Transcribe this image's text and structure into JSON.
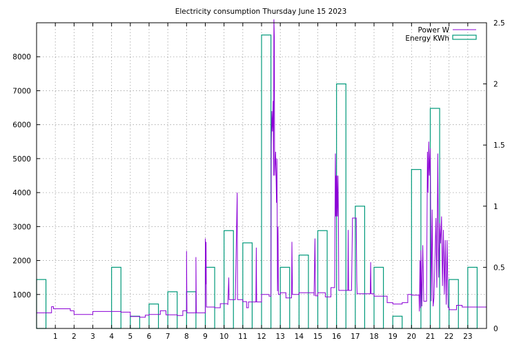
{
  "chart_data": {
    "type": "bar",
    "title": "Electricity consumption Thursday June 15 2023",
    "xlabel": "",
    "ylabel": "",
    "grid": true,
    "legend_position": "top-right",
    "x_ticks": [
      "1",
      "2",
      "3",
      "4",
      "5",
      "6",
      "7",
      "8",
      "9",
      "10",
      "11",
      "12",
      "13",
      "14",
      "15",
      "16",
      "17",
      "18",
      "19",
      "20",
      "21",
      "22",
      "23"
    ],
    "y_left_ticks": [
      "1000",
      "2000",
      "3000",
      "4000",
      "5000",
      "6000",
      "7000",
      "8000"
    ],
    "y_right_ticks": [
      "0",
      "0.5",
      "1",
      "1.5",
      "2",
      "2.5"
    ],
    "xlim": [
      0,
      24
    ],
    "ylim_left": [
      0,
      9000
    ],
    "ylim_right": [
      0,
      2.5
    ],
    "colors": {
      "power": "#8b00d6",
      "energy": "#00997a"
    },
    "series": [
      {
        "name": "Energy KWh",
        "axis": "right",
        "type": "bar",
        "bars": [
          {
            "x": 0.0,
            "value": 0.4
          },
          {
            "x": 4.0,
            "value": 0.5
          },
          {
            "x": 5.0,
            "value": 0.1
          },
          {
            "x": 6.0,
            "value": 0.2
          },
          {
            "x": 7.0,
            "value": 0.3
          },
          {
            "x": 8.0,
            "value": 0.3
          },
          {
            "x": 9.0,
            "value": 0.5
          },
          {
            "x": 10.0,
            "value": 0.8
          },
          {
            "x": 11.0,
            "value": 0.7
          },
          {
            "x": 12.0,
            "value": 2.4
          },
          {
            "x": 13.0,
            "value": 0.5
          },
          {
            "x": 14.0,
            "value": 0.6
          },
          {
            "x": 15.0,
            "value": 0.8
          },
          {
            "x": 16.0,
            "value": 2.0
          },
          {
            "x": 17.0,
            "value": 1.0
          },
          {
            "x": 18.0,
            "value": 0.5
          },
          {
            "x": 19.0,
            "value": 0.1
          },
          {
            "x": 20.0,
            "value": 1.3
          },
          {
            "x": 21.0,
            "value": 1.8
          },
          {
            "x": 22.0,
            "value": 0.4
          },
          {
            "x": 23.0,
            "value": 0.5
          }
        ]
      },
      {
        "name": "Power W",
        "axis": "left",
        "type": "line",
        "points": [
          [
            0.0,
            460
          ],
          [
            0.8,
            460
          ],
          [
            0.8,
            640
          ],
          [
            0.9,
            640
          ],
          [
            0.9,
            580
          ],
          [
            1.8,
            580
          ],
          [
            1.8,
            520
          ],
          [
            2.0,
            520
          ],
          [
            2.0,
            410
          ],
          [
            3.0,
            410
          ],
          [
            3.0,
            500
          ],
          [
            4.5,
            500
          ],
          [
            4.5,
            480
          ],
          [
            5.0,
            480
          ],
          [
            5.0,
            350
          ],
          [
            5.5,
            350
          ],
          [
            5.5,
            330
          ],
          [
            5.8,
            330
          ],
          [
            5.8,
            390
          ],
          [
            6.0,
            390
          ],
          [
            6.0,
            410
          ],
          [
            6.6,
            410
          ],
          [
            6.6,
            520
          ],
          [
            6.9,
            520
          ],
          [
            6.9,
            400
          ],
          [
            7.5,
            400
          ],
          [
            7.5,
            380
          ],
          [
            7.8,
            380
          ],
          [
            7.8,
            520
          ],
          [
            8.0,
            520
          ],
          [
            8.0,
            2280
          ],
          [
            8.02,
            460
          ],
          [
            8.5,
            460
          ],
          [
            8.5,
            2100
          ],
          [
            8.52,
            460
          ],
          [
            9.0,
            460
          ],
          [
            9.0,
            2650
          ],
          [
            9.02,
            1300
          ],
          [
            9.04,
            2550
          ],
          [
            9.06,
            630
          ],
          [
            9.5,
            630
          ],
          [
            9.5,
            610
          ],
          [
            9.8,
            610
          ],
          [
            9.8,
            730
          ],
          [
            10.2,
            730
          ],
          [
            10.2,
            690
          ],
          [
            10.25,
            1500
          ],
          [
            10.27,
            850
          ],
          [
            10.6,
            850
          ],
          [
            10.7,
            4000
          ],
          [
            10.72,
            850
          ],
          [
            11.0,
            850
          ],
          [
            11.0,
            790
          ],
          [
            11.2,
            790
          ],
          [
            11.2,
            610
          ],
          [
            11.3,
            610
          ],
          [
            11.3,
            780
          ],
          [
            11.7,
            780
          ],
          [
            11.72,
            2380
          ],
          [
            11.74,
            780
          ],
          [
            12.0,
            780
          ],
          [
            12.0,
            1000
          ],
          [
            12.4,
            1000
          ],
          [
            12.4,
            950
          ],
          [
            12.5,
            950
          ],
          [
            12.52,
            5400
          ],
          [
            12.55,
            6400
          ],
          [
            12.58,
            5800
          ],
          [
            12.62,
            6700
          ],
          [
            12.64,
            4500
          ],
          [
            12.66,
            9100
          ],
          [
            12.68,
            8600
          ],
          [
            12.7,
            4500
          ],
          [
            12.75,
            5200
          ],
          [
            12.8,
            3700
          ],
          [
            12.82,
            5000
          ],
          [
            12.85,
            1100
          ],
          [
            12.88,
            3000
          ],
          [
            12.9,
            1000
          ],
          [
            13.0,
            1000
          ],
          [
            13.0,
            1050
          ],
          [
            13.3,
            1050
          ],
          [
            13.3,
            900
          ],
          [
            13.6,
            900
          ],
          [
            13.62,
            2550
          ],
          [
            13.65,
            1000
          ],
          [
            14.0,
            1000
          ],
          [
            14.0,
            1050
          ],
          [
            14.8,
            1050
          ],
          [
            14.8,
            960
          ],
          [
            14.85,
            2650
          ],
          [
            14.88,
            960
          ],
          [
            15.0,
            960
          ],
          [
            15.0,
            1050
          ],
          [
            15.4,
            1050
          ],
          [
            15.4,
            930
          ],
          [
            15.7,
            930
          ],
          [
            15.7,
            1200
          ],
          [
            15.9,
            1200
          ],
          [
            15.92,
            3500
          ],
          [
            15.94,
            5150
          ],
          [
            15.96,
            3300
          ],
          [
            15.98,
            4500
          ],
          [
            16.0,
            3300
          ],
          [
            16.02,
            4500
          ],
          [
            16.05,
            3300
          ],
          [
            16.08,
            4500
          ],
          [
            16.1,
            3250
          ],
          [
            16.12,
            1120
          ],
          [
            16.6,
            1120
          ],
          [
            16.62,
            2900
          ],
          [
            16.64,
            1120
          ],
          [
            16.8,
            1120
          ],
          [
            16.85,
            3250
          ],
          [
            17.05,
            3250
          ],
          [
            17.08,
            1400
          ],
          [
            17.1,
            1020
          ],
          [
            17.8,
            1020
          ],
          [
            17.82,
            1950
          ],
          [
            17.84,
            1020
          ],
          [
            18.0,
            1020
          ],
          [
            18.0,
            950
          ],
          [
            18.7,
            950
          ],
          [
            18.7,
            760
          ],
          [
            19.0,
            760
          ],
          [
            19.0,
            720
          ],
          [
            19.5,
            720
          ],
          [
            19.5,
            760
          ],
          [
            19.8,
            760
          ],
          [
            19.8,
            1000
          ],
          [
            20.0,
            1000
          ],
          [
            20.0,
            980
          ],
          [
            20.4,
            980
          ],
          [
            20.42,
            500
          ],
          [
            20.45,
            2000
          ],
          [
            20.48,
            600
          ],
          [
            20.5,
            2300
          ],
          [
            20.55,
            650
          ],
          [
            20.6,
            2450
          ],
          [
            20.65,
            800
          ],
          [
            20.8,
            800
          ],
          [
            20.85,
            5200
          ],
          [
            20.88,
            4000
          ],
          [
            20.92,
            5500
          ],
          [
            20.95,
            4500
          ],
          [
            21.0,
            5300
          ],
          [
            21.05,
            800
          ],
          [
            21.1,
            3500
          ],
          [
            21.15,
            650
          ],
          [
            21.2,
            900
          ],
          [
            21.3,
            3250
          ],
          [
            21.35,
            1200
          ],
          [
            21.4,
            5150
          ],
          [
            21.45,
            1500
          ],
          [
            21.5,
            3100
          ],
          [
            21.55,
            2500
          ],
          [
            21.6,
            3300
          ],
          [
            21.65,
            1250
          ],
          [
            21.7,
            2900
          ],
          [
            21.75,
            1000
          ],
          [
            21.8,
            2600
          ],
          [
            21.85,
            700
          ],
          [
            21.9,
            2600
          ],
          [
            21.95,
            620
          ],
          [
            22.0,
            620
          ],
          [
            22.0,
            550
          ],
          [
            22.4,
            550
          ],
          [
            22.4,
            680
          ],
          [
            22.7,
            680
          ],
          [
            22.7,
            630
          ],
          [
            24.0,
            630
          ]
        ]
      }
    ]
  }
}
